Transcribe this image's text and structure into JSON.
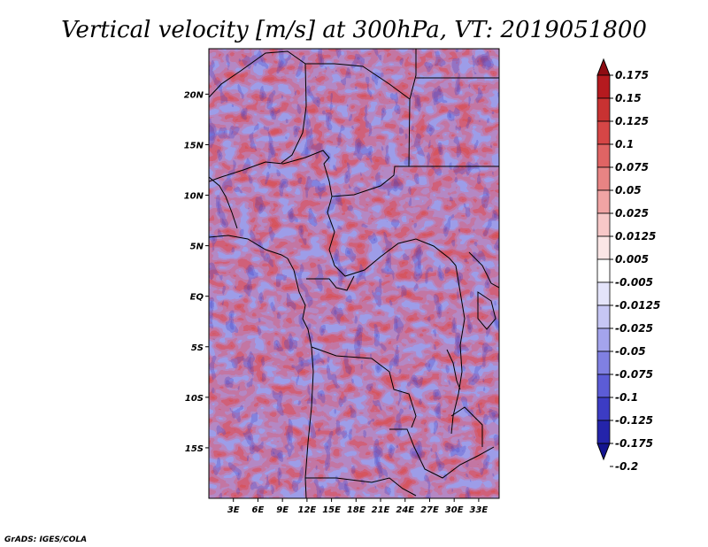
{
  "title": "Vertical velocity [m/s] at 300hPa, VT: 2019051800",
  "credit": "GrADS: IGES/COLA",
  "map": {
    "lon_range": [
      0,
      35.5
    ],
    "lat_range": [
      -20,
      24.5
    ],
    "lon_ticks": [
      "3E",
      "6E",
      "9E",
      "12E",
      "15E",
      "18E",
      "21E",
      "24E",
      "27E",
      "30E",
      "33E"
    ],
    "lon_tick_values": [
      3,
      6,
      9,
      12,
      15,
      18,
      21,
      24,
      27,
      30,
      33
    ],
    "lat_ticks": [
      "20N",
      "15N",
      "10N",
      "5N",
      "EQ",
      "5S",
      "10S",
      "15S"
    ],
    "lat_tick_values": [
      20,
      15,
      10,
      5,
      0,
      -5,
      -10,
      -15
    ]
  },
  "colorbar": {
    "labels": [
      "0.175",
      "0.15",
      "0.125",
      "0.1",
      "0.075",
      "0.05",
      "0.025",
      "0.0125",
      "0.005",
      "-0.005",
      "-0.0125",
      "-0.025",
      "-0.05",
      "-0.075",
      "-0.1",
      "-0.125",
      "-0.175",
      "-0.2"
    ],
    "colors": [
      "#8e0c12",
      "#b51a1f",
      "#c83232",
      "#d64646",
      "#e06464",
      "#e88484",
      "#f0a4a4",
      "#f7c8c8",
      "#fbe6e6",
      "#ffffff",
      "#e4e4fa",
      "#c6c6f4",
      "#a4a4ec",
      "#8080e2",
      "#5c5cd6",
      "#3c3cc4",
      "#2424aa",
      "#141490"
    ]
  }
}
